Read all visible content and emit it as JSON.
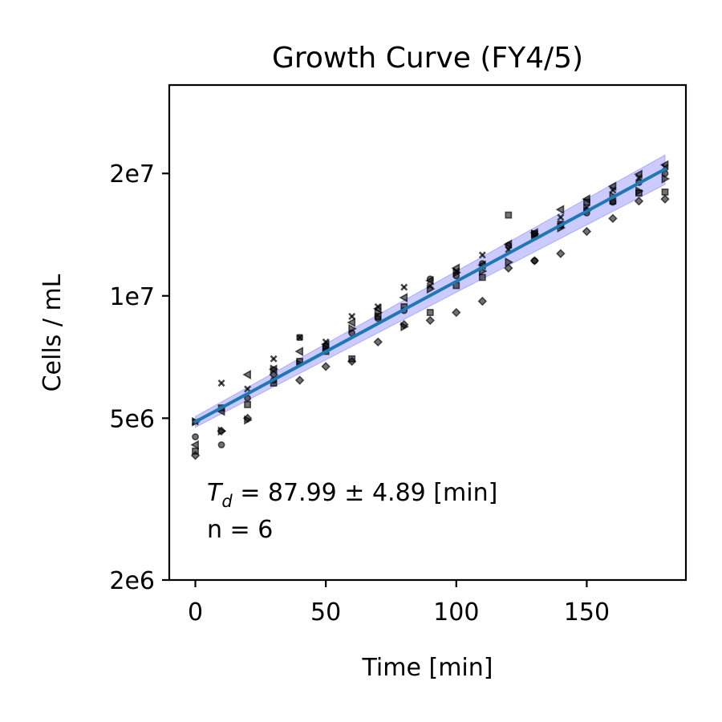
{
  "chart_data": {
    "type": "scatter",
    "title": "Growth Curve (FY4/5)",
    "xlabel": "Time [min]",
    "ylabel": "Cells / mL",
    "xlim": [
      -10,
      188
    ],
    "ylim": [
      2000000,
      33000000
    ],
    "yscale": "log",
    "grid": false,
    "xticks": [
      0,
      50,
      100,
      150
    ],
    "xtick_labels": [
      "0",
      "50",
      "100",
      "150"
    ],
    "yticks": [
      2000000,
      5000000,
      10000000,
      20000000
    ],
    "ytick_labels": [
      "2e6",
      "5e6",
      "1e7",
      "2e7"
    ],
    "colors": {
      "points": "#000000",
      "fit_line": "#1f77b4",
      "ci_band": "#6a6aff"
    },
    "annotation": {
      "symbol": "T",
      "subscript": "d",
      "text": " = 87.99 ± 4.89 [min]",
      "n_text": "n = 6"
    },
    "fit": {
      "type": "exponential",
      "x": [
        0,
        180
      ],
      "y": [
        4900000,
        20500000
      ],
      "ci_x": [
        0,
        180
      ],
      "ci_lower": [
        4750000,
        18800000
      ],
      "ci_upper": [
        5050000,
        22200000
      ]
    },
    "series": [
      {
        "marker": "circle",
        "x": [
          0,
          10,
          20,
          30,
          40,
          50,
          60,
          70,
          80,
          90,
          100,
          110,
          120,
          130,
          140,
          150,
          160,
          170,
          180
        ],
        "y": [
          4500000,
          4300000,
          5600000,
          6200000,
          7900000,
          7500000,
          8100000,
          8800000,
          9200000,
          11000000,
          11200000,
          12000000,
          13300000,
          12200000,
          14900000,
          16000000,
          17000000,
          19000000,
          20000000
        ]
      },
      {
        "marker": "square",
        "x": [
          0,
          10,
          20,
          30,
          40,
          50,
          60,
          70,
          80,
          90,
          100,
          110,
          120,
          130,
          140,
          150,
          160,
          170,
          180
        ],
        "y": [
          4150000,
          5300000,
          5400000,
          6100000,
          6900000,
          7300000,
          7000000,
          8900000,
          9400000,
          9100000,
          10600000,
          11100000,
          15800000,
          14200000,
          15000000,
          17000000,
          17100000,
          17900000,
          18000000
        ]
      },
      {
        "marker": "x",
        "x": [
          0,
          10,
          20,
          30,
          40,
          50,
          60,
          70,
          80,
          90,
          100,
          110,
          120,
          130,
          140,
          150,
          160,
          170,
          180
        ],
        "y": [
          4900000,
          6100000,
          5900000,
          7000000,
          7900000,
          7700000,
          8900000,
          9400000,
          10500000,
          10600000,
          11500000,
          12600000,
          13000000,
          14000000,
          15600000,
          16500000,
          18200000,
          19500000,
          20700000
        ]
      },
      {
        "marker": "triangle-left",
        "x": [
          0,
          10,
          20,
          30,
          40,
          50,
          60,
          70,
          80,
          90,
          100,
          110,
          120,
          130,
          140,
          150,
          160,
          170,
          180
        ],
        "y": [
          4300000,
          5200000,
          6400000,
          6600000,
          7300000,
          7600000,
          8600000,
          9300000,
          9900000,
          10900000,
          11700000,
          11900000,
          13400000,
          14300000,
          16300000,
          17300000,
          18600000,
          19900000,
          21000000
        ]
      },
      {
        "marker": "diamond",
        "x": [
          0,
          10,
          20,
          30,
          40,
          50,
          60,
          70,
          80,
          90,
          100,
          110,
          120,
          130,
          140,
          150,
          160,
          170,
          180
        ],
        "y": [
          4050000,
          4650000,
          5000000,
          6400000,
          6200000,
          6700000,
          6900000,
          7700000,
          8500000,
          8700000,
          9100000,
          9700000,
          11700000,
          12200000,
          12700000,
          14400000,
          15500000,
          17100000,
          17300000
        ]
      },
      {
        "marker": "right-triangle",
        "x": [
          0,
          10,
          20,
          30,
          40,
          50,
          60,
          70,
          80,
          90,
          100,
          110,
          120,
          130,
          140,
          150,
          160,
          170,
          180
        ],
        "y": [
          4900000,
          4650000,
          4950000,
          6600000,
          6800000,
          7400000,
          8300000,
          9100000,
          8400000,
          10400000,
          11400000,
          11500000,
          12100000,
          14200000,
          14700000,
          16200000,
          17600000,
          18100000,
          19400000
        ]
      }
    ]
  }
}
